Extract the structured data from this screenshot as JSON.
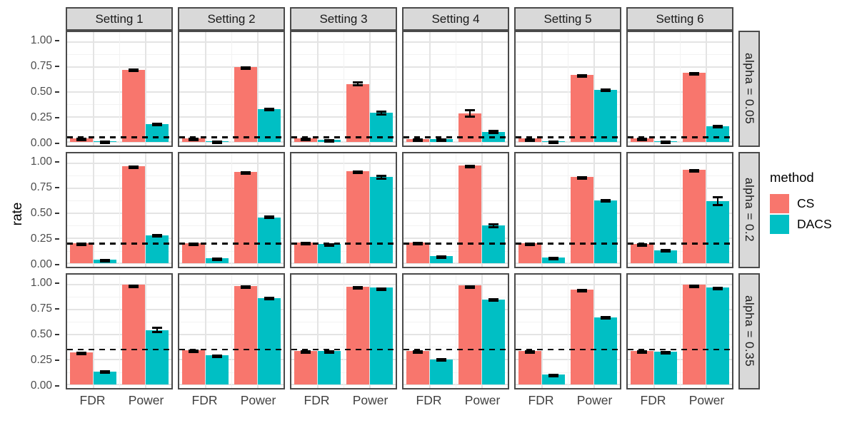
{
  "chart_data": {
    "type": "bar",
    "title": "",
    "ylabel": "rate",
    "ylim": [
      0,
      1
    ],
    "y_major_ticks": [
      1.0,
      0.75,
      0.5,
      0.25,
      0.0
    ],
    "y_tick_labels": [
      "1.00",
      "0.75",
      "0.50",
      "0.25",
      "0.00"
    ],
    "y_minor_ticks": [
      0.875,
      0.625,
      0.375,
      0.125
    ],
    "categories": [
      "FDR",
      "Power"
    ],
    "series_names": [
      "CS",
      "DACS"
    ],
    "colors": {
      "CS": "#F8766D",
      "DACS": "#00BFC4"
    },
    "legend_title": "method",
    "legend_position": "right",
    "grid": true,
    "facet_columns": [
      "Setting 1",
      "Setting 2",
      "Setting 3",
      "Setting 4",
      "Setting 5",
      "Setting 6"
    ],
    "facet_rows": [
      "alpha = 0.05",
      "alpha = 0.2",
      "alpha = 0.35"
    ],
    "dashed_reference_lines": [
      0.05,
      0.2,
      0.35
    ],
    "error_bars": "mean ± se, black whiskers with caps",
    "panels": [
      [
        {
          "FDR": {
            "CS": [
              0.04,
              0.005
            ],
            "DACS": [
              0.012,
              0.004
            ]
          },
          "Power": {
            "CS": [
              0.72,
              0.012
            ],
            "DACS": [
              0.18,
              0.012
            ]
          }
        },
        {
          "FDR": {
            "CS": [
              0.04,
              0.006
            ],
            "DACS": [
              0.012,
              0.004
            ]
          },
          "Power": {
            "CS": [
              0.745,
              0.01
            ],
            "DACS": [
              0.325,
              0.015
            ]
          }
        },
        {
          "FDR": {
            "CS": [
              0.035,
              0.008
            ],
            "DACS": [
              0.025,
              0.008
            ]
          },
          "Power": {
            "CS": [
              0.58,
              0.025
            ],
            "DACS": [
              0.29,
              0.022
            ]
          }
        },
        {
          "FDR": {
            "CS": [
              0.032,
              0.008
            ],
            "DACS": [
              0.03,
              0.008
            ]
          },
          "Power": {
            "CS": [
              0.285,
              0.045
            ],
            "DACS": [
              0.1,
              0.022
            ]
          }
        },
        {
          "FDR": {
            "CS": [
              0.035,
              0.005
            ],
            "DACS": [
              0.012,
              0.004
            ]
          },
          "Power": {
            "CS": [
              0.67,
              0.01
            ],
            "DACS": [
              0.52,
              0.012
            ]
          }
        },
        {
          "FDR": {
            "CS": [
              0.035,
              0.006
            ],
            "DACS": [
              0.012,
              0.005
            ]
          },
          "Power": {
            "CS": [
              0.69,
              0.01
            ],
            "DACS": [
              0.16,
              0.012
            ]
          }
        }
      ],
      [
        {
          "FDR": {
            "CS": [
              0.2,
              0.006
            ],
            "DACS": [
              0.035,
              0.006
            ]
          },
          "Power": {
            "CS": [
              0.97,
              0.004
            ],
            "DACS": [
              0.28,
              0.015
            ]
          }
        },
        {
          "FDR": {
            "CS": [
              0.2,
              0.006
            ],
            "DACS": [
              0.05,
              0.008
            ]
          },
          "Power": {
            "CS": [
              0.91,
              0.006
            ],
            "DACS": [
              0.46,
              0.02
            ]
          }
        },
        {
          "FDR": {
            "CS": [
              0.205,
              0.008
            ],
            "DACS": [
              0.19,
              0.012
            ]
          },
          "Power": {
            "CS": [
              0.92,
              0.006
            ],
            "DACS": [
              0.86,
              0.025
            ]
          }
        },
        {
          "FDR": {
            "CS": [
              0.205,
              0.008
            ],
            "DACS": [
              0.07,
              0.008
            ]
          },
          "Power": {
            "CS": [
              0.975,
              0.004
            ],
            "DACS": [
              0.375,
              0.028
            ]
          }
        },
        {
          "FDR": {
            "CS": [
              0.2,
              0.006
            ],
            "DACS": [
              0.055,
              0.008
            ]
          },
          "Power": {
            "CS": [
              0.86,
              0.008
            ],
            "DACS": [
              0.63,
              0.012
            ]
          }
        },
        {
          "FDR": {
            "CS": [
              0.195,
              0.008
            ],
            "DACS": [
              0.13,
              0.012
            ]
          },
          "Power": {
            "CS": [
              0.93,
              0.008
            ],
            "DACS": [
              0.62,
              0.05
            ]
          }
        }
      ],
      [
        {
          "FDR": {
            "CS": [
              0.32,
              0.008
            ],
            "DACS": [
              0.13,
              0.012
            ]
          },
          "Power": {
            "CS": [
              0.998,
              0.002
            ],
            "DACS": [
              0.545,
              0.03
            ]
          }
        },
        {
          "FDR": {
            "CS": [
              0.345,
              0.006
            ],
            "DACS": [
              0.29,
              0.01
            ]
          },
          "Power": {
            "CS": [
              0.985,
              0.004
            ],
            "DACS": [
              0.865,
              0.012
            ]
          }
        },
        {
          "FDR": {
            "CS": [
              0.335,
              0.008
            ],
            "DACS": [
              0.335,
              0.008
            ]
          },
          "Power": {
            "CS": [
              0.975,
              0.004
            ],
            "DACS": [
              0.965,
              0.006
            ]
          }
        },
        {
          "FDR": {
            "CS": [
              0.335,
              0.008
            ],
            "DACS": [
              0.25,
              0.015
            ]
          },
          "Power": {
            "CS": [
              0.99,
              0.003
            ],
            "DACS": [
              0.845,
              0.02
            ]
          }
        },
        {
          "FDR": {
            "CS": [
              0.335,
              0.006
            ],
            "DACS": [
              0.1,
              0.008
            ]
          },
          "Power": {
            "CS": [
              0.95,
              0.005
            ],
            "DACS": [
              0.67,
              0.012
            ]
          }
        },
        {
          "FDR": {
            "CS": [
              0.335,
              0.008
            ],
            "DACS": [
              0.33,
              0.008
            ]
          },
          "Power": {
            "CS": [
              0.995,
              0.003
            ],
            "DACS": [
              0.97,
              0.008
            ]
          }
        }
      ]
    ]
  }
}
